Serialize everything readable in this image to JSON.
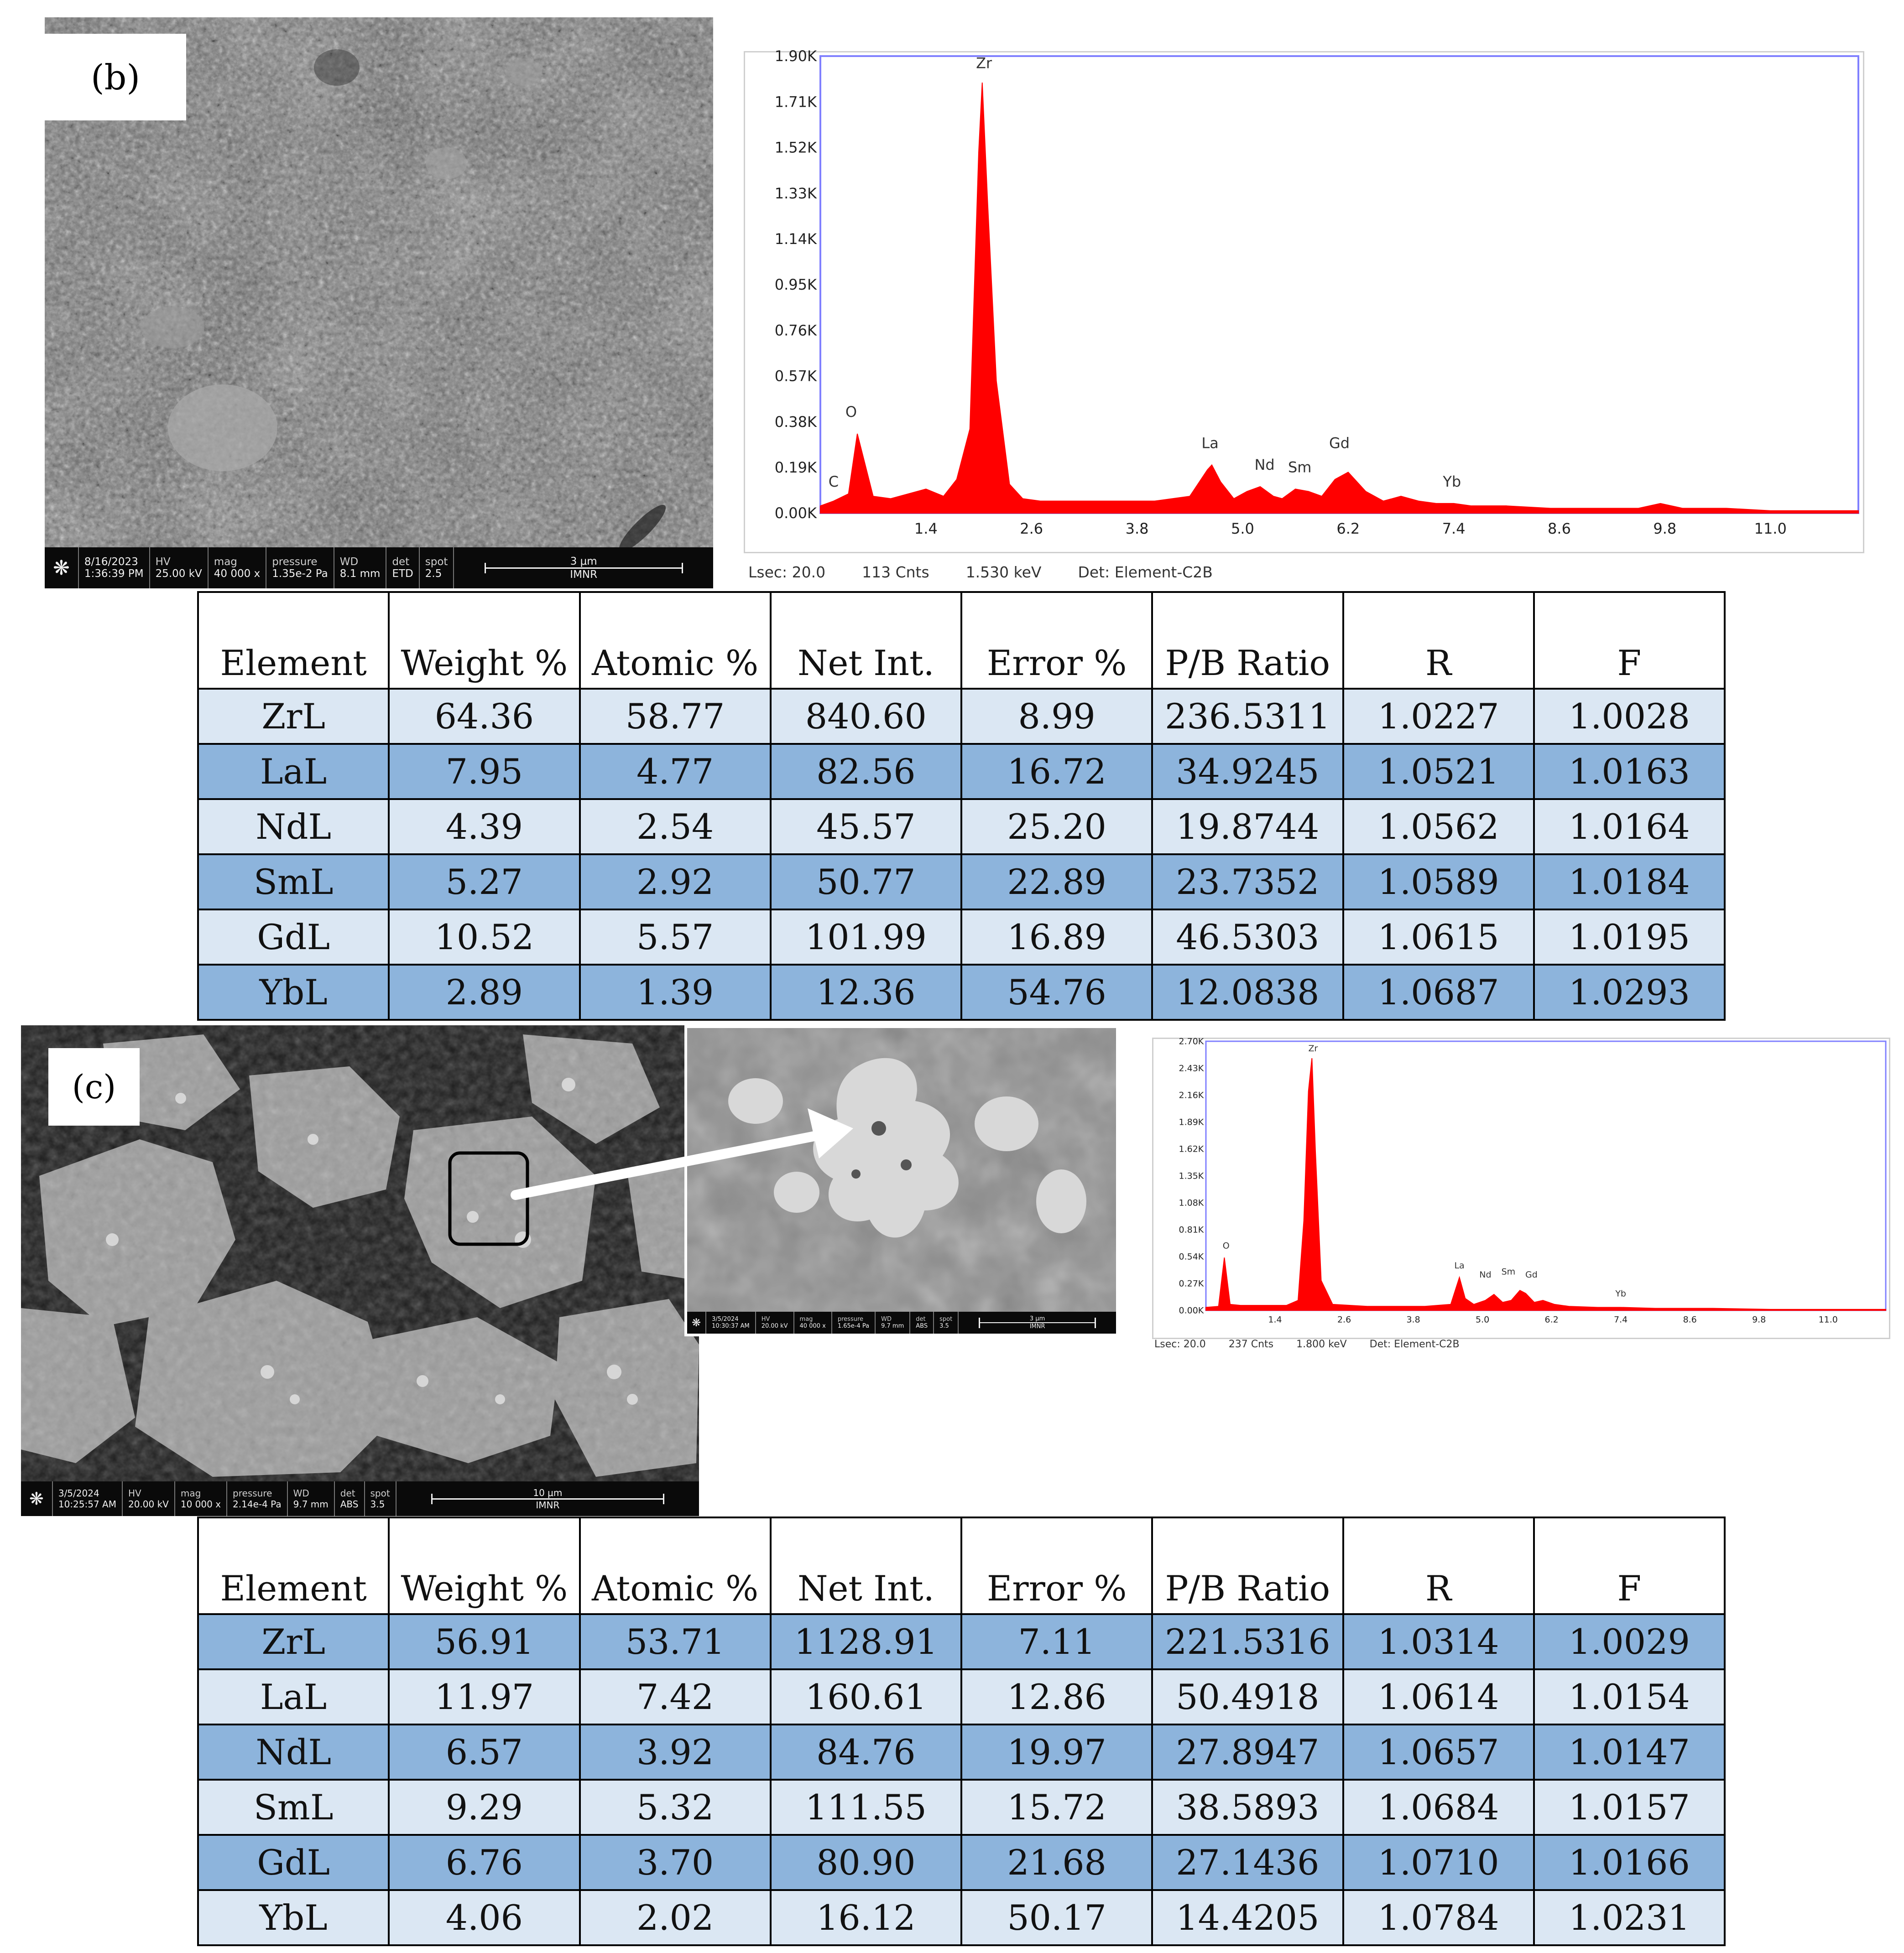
{
  "panel_b": {
    "label": "(b)",
    "sem_databar": {
      "date": "8/16/2023",
      "time": "1:36:39 PM",
      "hv_label": "HV",
      "hv": "25.00 kV",
      "mag_label": "mag",
      "mag": "40 000 x",
      "pressure_label": "pressure",
      "pressure": "1.35e-2 Pa",
      "wd_label": "WD",
      "wd": "8.1 mm",
      "det_label": "det",
      "det": "ETD",
      "spot_label": "spot",
      "spot": "2.5",
      "scale": "3 μm",
      "lab": "IMNR"
    },
    "spectrum_footer": {
      "lsec": "Lsec: 20.0",
      "cnts": "113 Cnts",
      "kev": "1.530 keV",
      "det": "Det: Element-C2B"
    }
  },
  "panel_c": {
    "label": "(c)",
    "sem_databar": {
      "date": "3/5/2024",
      "time": "10:25:57 AM",
      "hv_label": "HV",
      "hv": "20.00 kV",
      "mag_label": "mag",
      "mag": "10 000 x",
      "pressure_label": "pressure",
      "pressure": "2.14e-4 Pa",
      "wd_label": "WD",
      "wd": "9.7 mm",
      "det_label": "det",
      "det": "ABS",
      "spot_label": "spot",
      "spot": "3.5",
      "scale": "10 μm",
      "lab": "IMNR"
    },
    "inset_databar": {
      "date": "3/5/2024",
      "time": "10:30:37 AM",
      "hv_label": "HV",
      "hv": "20.00 kV",
      "mag_label": "mag",
      "mag": "40 000 x",
      "pressure_label": "pressure",
      "pressure": "1.65e-4 Pa",
      "wd_label": "WD",
      "wd": "9.7 mm",
      "det_label": "det",
      "det": "ABS",
      "spot_label": "spot",
      "spot": "3.5",
      "scale": "3 μm",
      "lab": "IMNR"
    },
    "spectrum_footer": {
      "lsec": "Lsec: 20.0",
      "cnts": "237 Cnts",
      "kev": "1.800 keV",
      "det": "Det: Element-C2B"
    }
  },
  "chart_data": [
    {
      "type": "area",
      "x": [
        0.2,
        0.35,
        0.52,
        0.62,
        0.8,
        1.0,
        1.2,
        1.4,
        1.6,
        1.75,
        1.9,
        2.0,
        2.04,
        2.1,
        2.2,
        2.35,
        2.5,
        2.7,
        3.0,
        3.5,
        4.0,
        4.4,
        4.6,
        4.65,
        4.75,
        4.9,
        5.05,
        5.2,
        5.35,
        5.45,
        5.6,
        5.75,
        5.9,
        6.05,
        6.2,
        6.4,
        6.6,
        6.8,
        7.0,
        7.2,
        7.4,
        7.6,
        8.0,
        8.5,
        9.0,
        9.5,
        9.75,
        10.0,
        10.5,
        11.0,
        11.5,
        12.0
      ],
      "values": [
        0.03,
        0.05,
        0.08,
        0.33,
        0.07,
        0.06,
        0.08,
        0.1,
        0.07,
        0.14,
        0.35,
        1.5,
        1.79,
        1.3,
        0.55,
        0.12,
        0.06,
        0.05,
        0.05,
        0.05,
        0.05,
        0.07,
        0.18,
        0.2,
        0.13,
        0.06,
        0.09,
        0.11,
        0.07,
        0.06,
        0.1,
        0.09,
        0.07,
        0.14,
        0.17,
        0.09,
        0.05,
        0.07,
        0.05,
        0.04,
        0.04,
        0.03,
        0.03,
        0.02,
        0.02,
        0.02,
        0.04,
        0.02,
        0.02,
        0.01,
        0.01,
        0.01
      ],
      "xlabel": "",
      "ylabel": "",
      "xticks": [
        "1.4",
        "2.6",
        "3.8",
        "5.0",
        "6.2",
        "7.4",
        "8.6",
        "9.8",
        "11.0"
      ],
      "xtick_values": [
        1.4,
        2.6,
        3.8,
        5.0,
        6.2,
        7.4,
        8.6,
        9.8,
        11.0
      ],
      "yticks": [
        "0.00K",
        "0.19K",
        "0.38K",
        "0.57K",
        "0.76K",
        "0.95K",
        "1.14K",
        "1.33K",
        "1.52K",
        "1.71K",
        "1.90K"
      ],
      "ytick_values": [
        0,
        0.19,
        0.38,
        0.57,
        0.76,
        0.95,
        1.14,
        1.33,
        1.52,
        1.71,
        1.9
      ],
      "xlim": [
        0.2,
        12.0
      ],
      "ylim": [
        0,
        1.9
      ],
      "peak_labels": [
        {
          "text": "C",
          "x": 0.35,
          "y": 0.11
        },
        {
          "text": "O",
          "x": 0.55,
          "y": 0.4
        },
        {
          "text": "Zr",
          "x": 2.06,
          "y": 1.85
        },
        {
          "text": "La",
          "x": 4.63,
          "y": 0.27
        },
        {
          "text": "Nd",
          "x": 5.25,
          "y": 0.18
        },
        {
          "text": "Sm",
          "x": 5.65,
          "y": 0.17
        },
        {
          "text": "Gd",
          "x": 6.1,
          "y": 0.27
        },
        {
          "text": "Yb",
          "x": 7.38,
          "y": 0.11
        }
      ],
      "color": "#ff0000"
    },
    {
      "type": "area",
      "x": [
        0.2,
        0.42,
        0.52,
        0.62,
        0.8,
        1.2,
        1.6,
        1.8,
        1.9,
        1.98,
        2.04,
        2.1,
        2.2,
        2.4,
        3.0,
        4.0,
        4.45,
        4.6,
        4.7,
        4.85,
        5.05,
        5.2,
        5.35,
        5.5,
        5.65,
        5.75,
        5.9,
        6.05,
        6.25,
        6.5,
        7.0,
        7.4,
        8.0,
        9.0,
        10.0,
        11.0,
        12.0
      ],
      "values": [
        0.03,
        0.04,
        0.53,
        0.06,
        0.05,
        0.05,
        0.05,
        0.1,
        0.9,
        2.2,
        2.53,
        1.6,
        0.3,
        0.06,
        0.04,
        0.04,
        0.06,
        0.33,
        0.12,
        0.06,
        0.1,
        0.16,
        0.08,
        0.1,
        0.2,
        0.17,
        0.08,
        0.1,
        0.06,
        0.04,
        0.03,
        0.03,
        0.02,
        0.02,
        0.01,
        0.01,
        0.01
      ],
      "xlabel": "",
      "ylabel": "",
      "xticks": [
        "1.4",
        "2.6",
        "3.8",
        "5.0",
        "6.2",
        "7.4",
        "8.6",
        "9.8",
        "11.0"
      ],
      "xtick_values": [
        1.4,
        2.6,
        3.8,
        5.0,
        6.2,
        7.4,
        8.6,
        9.8,
        11.0
      ],
      "yticks": [
        "0.00K",
        "0.27K",
        "0.54K",
        "0.81K",
        "1.08K",
        "1.35K",
        "1.62K",
        "1.89K",
        "2.16K",
        "2.43K",
        "2.70K"
      ],
      "ytick_values": [
        0,
        0.27,
        0.54,
        0.81,
        1.08,
        1.35,
        1.62,
        1.89,
        2.16,
        2.43,
        2.7
      ],
      "xlim": [
        0.2,
        12.0
      ],
      "ylim": [
        0,
        2.7
      ],
      "peak_labels": [
        {
          "text": "O",
          "x": 0.55,
          "y": 0.62
        },
        {
          "text": "Zr",
          "x": 2.06,
          "y": 2.6
        },
        {
          "text": "La",
          "x": 4.6,
          "y": 0.42
        },
        {
          "text": "Nd",
          "x": 5.05,
          "y": 0.33
        },
        {
          "text": "Sm",
          "x": 5.45,
          "y": 0.36
        },
        {
          "text": "Gd",
          "x": 5.85,
          "y": 0.33
        },
        {
          "text": "Yb",
          "x": 7.4,
          "y": 0.14
        }
      ],
      "color": "#ff0000"
    },
    {
      "type": "table",
      "columns": [
        "Element",
        "Weight %",
        "Atomic %",
        "Net Int.",
        "Error %",
        "P/B Ratio",
        "R",
        "F"
      ],
      "rows": [
        [
          "ZrL",
          "64.36",
          "58.77",
          "840.60",
          "8.99",
          "236.5311",
          "1.0227",
          "1.0028"
        ],
        [
          "LaL",
          "7.95",
          "4.77",
          "82.56",
          "16.72",
          "34.9245",
          "1.0521",
          "1.0163"
        ],
        [
          "NdL",
          "4.39",
          "2.54",
          "45.57",
          "25.20",
          "19.8744",
          "1.0562",
          "1.0164"
        ],
        [
          "SmL",
          "5.27",
          "2.92",
          "50.77",
          "22.89",
          "23.7352",
          "1.0589",
          "1.0184"
        ],
        [
          "GdL",
          "10.52",
          "5.57",
          "101.99",
          "16.89",
          "46.5303",
          "1.0615",
          "1.0195"
        ],
        [
          "YbL",
          "2.89",
          "1.39",
          "12.36",
          "54.76",
          "12.0838",
          "1.0687",
          "1.0293"
        ]
      ]
    },
    {
      "type": "table",
      "columns": [
        "Element",
        "Weight %",
        "Atomic %",
        "Net Int.",
        "Error %",
        "P/B Ratio",
        "R",
        "F"
      ],
      "rows": [
        [
          "ZrL",
          "56.91",
          "53.71",
          "1128.91",
          "7.11",
          "221.5316",
          "1.0314",
          "1.0029"
        ],
        [
          "LaL",
          "11.97",
          "7.42",
          "160.61",
          "12.86",
          "50.4918",
          "1.0614",
          "1.0154"
        ],
        [
          "NdL",
          "6.57",
          "3.92",
          "84.76",
          "19.97",
          "27.8947",
          "1.0657",
          "1.0147"
        ],
        [
          "SmL",
          "9.29",
          "5.32",
          "111.55",
          "15.72",
          "38.5893",
          "1.0684",
          "1.0157"
        ],
        [
          "GdL",
          "6.76",
          "3.70",
          "80.90",
          "21.68",
          "27.1436",
          "1.0710",
          "1.0166"
        ],
        [
          "YbL",
          "4.06",
          "2.02",
          "16.12",
          "50.17",
          "14.4205",
          "1.0784",
          "1.0231"
        ]
      ]
    }
  ]
}
